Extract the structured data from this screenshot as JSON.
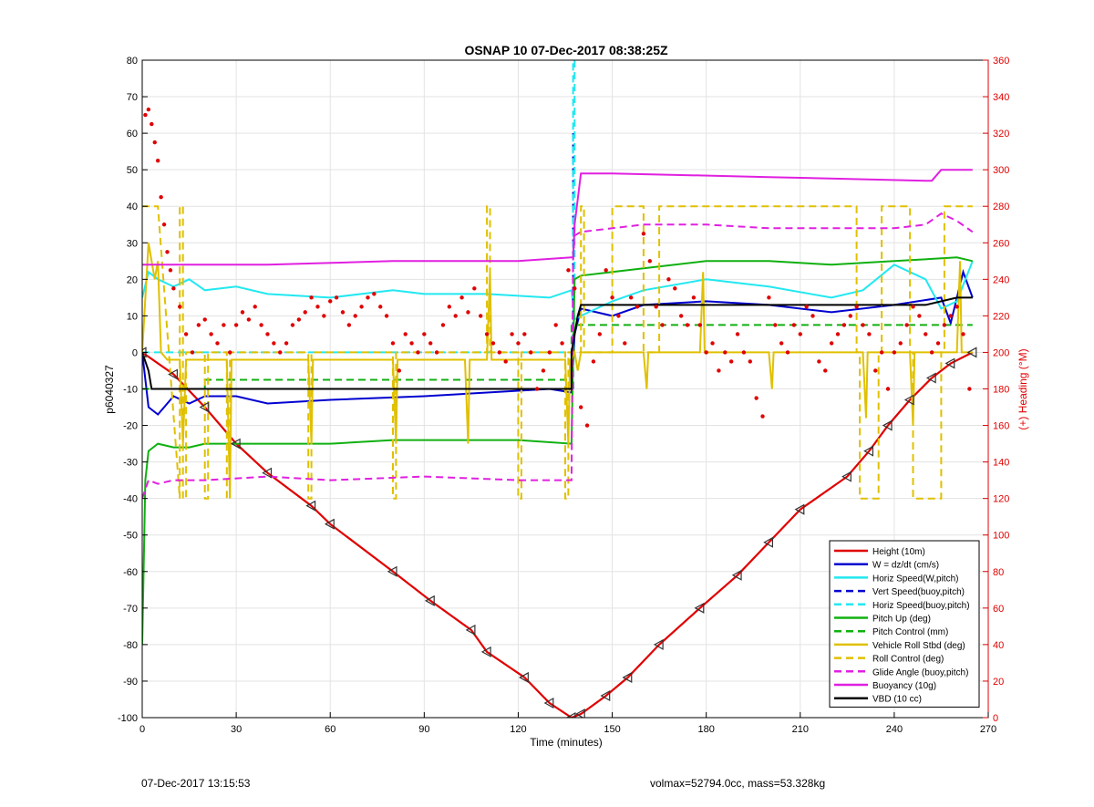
{
  "footer": {
    "left": "07-Dec-2017 13:15:53",
    "right": "volmax=52794.0cc, mass=53.328kg"
  },
  "colors": {
    "height": "#e00000",
    "w": "#0000d0",
    "horiz_w": "#22e8f0",
    "vert_buoy": "#0000d0",
    "horiz_buoy": "#22e8f0",
    "pitch_up": "#10b010",
    "pitch_control": "#10b010",
    "roll": "#e0c000",
    "roll_control": "#e0c000",
    "glide": "#e020e0",
    "buoyancy": "#e020e0",
    "vbd": "#000000",
    "heading": "#e00000",
    "right_axis": "#e00000"
  },
  "chart_data": {
    "type": "line",
    "title": "OSNAP 10 07-Dec-2017 08:38:25Z",
    "xlabel": "Time (minutes)",
    "ylabel": "p6040327",
    "y2label": "(+) Heading (°M)",
    "xlim": [
      0,
      270
    ],
    "ylim": [
      -100,
      80
    ],
    "y2lim": [
      0,
      360
    ],
    "xticks": [
      0,
      30,
      60,
      90,
      120,
      150,
      180,
      210,
      240,
      270
    ],
    "yticks": [
      -100,
      -90,
      -80,
      -70,
      -60,
      -50,
      -40,
      -30,
      -20,
      -10,
      0,
      10,
      20,
      30,
      40,
      50,
      60,
      70,
      80
    ],
    "y2ticks": [
      0,
      20,
      40,
      60,
      80,
      100,
      120,
      140,
      160,
      180,
      200,
      220,
      240,
      260,
      280,
      300,
      320,
      340,
      360
    ],
    "grid": true,
    "legend_position": "bottom-right",
    "series": [
      {
        "name": "Height (10m)",
        "style": "solid",
        "color_key": "height",
        "x": [
          0,
          10,
          20,
          30,
          40,
          54,
          60,
          80,
          92,
          105,
          110,
          122,
          130,
          137,
          140,
          148,
          155,
          165,
          178,
          190,
          200,
          210,
          225,
          232,
          238,
          245,
          252,
          258,
          265
        ],
        "y": [
          0,
          -6,
          -15,
          -25,
          -33,
          -42,
          -47,
          -60,
          -68,
          -76,
          -82,
          -89,
          -96,
          -100,
          -99,
          -94,
          -89,
          -80,
          -70,
          -61,
          -52,
          -43,
          -34,
          -27,
          -20,
          -13,
          -7,
          -3,
          0
        ]
      },
      {
        "name": "W = dz/dt (cm/s)",
        "style": "solid",
        "color_key": "w",
        "x": [
          0,
          2,
          5,
          10,
          15,
          20,
          30,
          40,
          60,
          90,
          110,
          130,
          137,
          138,
          140,
          150,
          160,
          180,
          200,
          220,
          240,
          255,
          258,
          262,
          265
        ],
        "y": [
          0,
          -15,
          -17,
          -12,
          -14,
          -12,
          -12,
          -14,
          -13,
          -12,
          -11,
          -10,
          -11,
          5,
          12,
          10,
          13,
          14,
          13,
          11,
          13,
          15,
          8,
          22,
          15
        ]
      },
      {
        "name": "Horiz Speed(W,pitch)",
        "style": "solid",
        "color_key": "horiz_w",
        "x": [
          0,
          2,
          5,
          10,
          15,
          20,
          30,
          40,
          60,
          80,
          90,
          110,
          130,
          137,
          138,
          140,
          150,
          160,
          180,
          200,
          220,
          230,
          240,
          250,
          255,
          260,
          265
        ],
        "y": [
          15,
          22,
          20,
          18,
          20,
          17,
          18,
          16,
          15,
          17,
          16,
          16,
          15,
          17,
          9,
          10,
          14,
          17,
          20,
          18,
          15,
          17,
          24,
          20,
          12,
          14,
          25
        ]
      },
      {
        "name": "Vert Speed(buoy,pitch)",
        "style": "dashed",
        "color_key": "vert_buoy",
        "x": [
          137.5,
          137.5
        ],
        "y": [
          -10,
          60
        ]
      },
      {
        "name": "Horiz Speed(buoy,pitch)",
        "style": "dashed",
        "color_key": "horiz_buoy",
        "x": [
          0,
          137,
          137.5,
          137.5,
          138,
          138
        ],
        "y": [
          0,
          0,
          15,
          80,
          80,
          15
        ]
      },
      {
        "name": "Pitch Up (deg)",
        "style": "solid",
        "color_key": "pitch_up",
        "x": [
          0,
          1,
          2,
          5,
          10,
          15,
          20,
          30,
          40,
          60,
          80,
          100,
          120,
          137,
          138,
          140,
          150,
          160,
          180,
          200,
          220,
          240,
          260,
          265
        ],
        "y": [
          -80,
          -35,
          -27,
          -25,
          -26,
          -26,
          -25,
          -25,
          -25,
          -25,
          -24,
          -24,
          -24,
          -25,
          20,
          21,
          22,
          23,
          25,
          25,
          24,
          25,
          26,
          25
        ]
      },
      {
        "name": "Pitch Control (mm)",
        "style": "dashed",
        "color_key": "pitch_control",
        "x": [
          0,
          20,
          20,
          110,
          110,
          137,
          137,
          265
        ],
        "y": [
          -10,
          -10,
          -7.5,
          -7.5,
          -7.5,
          -7.5,
          7.5,
          7.5
        ]
      },
      {
        "name": "Vehicle Roll Stbd (deg)",
        "style": "solid",
        "color_key": "roll",
        "x": [
          0,
          2,
          4,
          5,
          6,
          8,
          12,
          13,
          14,
          15,
          27,
          28,
          28.5,
          29,
          53,
          54,
          54.5,
          55,
          80,
          81,
          81.5,
          82,
          103,
          104,
          104.5,
          105,
          110,
          111,
          111.5,
          112,
          135,
          136,
          136.5,
          137,
          138,
          139,
          140,
          141,
          160,
          161,
          161.5,
          162,
          178,
          179,
          179.5,
          180,
          200,
          201,
          201.5,
          202,
          230,
          231,
          231.5,
          232,
          245,
          246,
          246.5,
          247,
          260,
          261,
          261.5,
          262,
          265
        ],
        "y": [
          0,
          30,
          20,
          25,
          0,
          -2,
          -2,
          -25,
          -2,
          -2,
          -2,
          -40,
          -2,
          -2,
          -2,
          -25,
          -2,
          -2,
          -2,
          -25,
          -2,
          -2,
          -2,
          -25,
          -2,
          -2,
          -2,
          22,
          -2,
          -2,
          -2,
          -25,
          -2,
          -2,
          0,
          -5,
          0,
          0,
          0,
          -10,
          0,
          0,
          0,
          22,
          0,
          0,
          0,
          -10,
          0,
          0,
          0,
          -18,
          0,
          0,
          0,
          -20,
          0,
          0,
          0,
          25,
          0,
          0,
          0
        ]
      },
      {
        "name": "Roll Control (deg)",
        "style": "dashed",
        "color_key": "roll_control",
        "x": [
          0,
          5,
          5,
          12,
          12,
          13,
          13,
          14,
          14,
          20,
          20,
          21,
          21,
          27,
          27,
          28,
          28,
          53,
          53,
          54,
          54,
          80,
          80,
          81,
          81,
          110,
          110,
          111,
          111,
          120,
          120,
          121,
          121,
          135,
          135,
          136,
          136,
          140,
          140,
          141,
          141,
          150,
          150,
          160,
          160,
          165,
          165,
          228,
          228,
          229,
          229,
          235,
          235,
          236,
          236,
          245,
          245,
          246,
          246,
          255,
          255,
          256,
          256,
          265
        ],
        "y": [
          40,
          40,
          40,
          -40,
          40,
          40,
          -40,
          -40,
          0,
          0,
          -40,
          -40,
          0,
          0,
          -40,
          -40,
          0,
          0,
          -40,
          -40,
          0,
          0,
          -40,
          -40,
          0,
          0,
          40,
          40,
          0,
          0,
          -40,
          -40,
          0,
          0,
          -40,
          -40,
          0,
          0,
          40,
          40,
          0,
          0,
          40,
          40,
          0,
          0,
          40,
          40,
          0,
          0,
          -40,
          -40,
          0,
          0,
          40,
          40,
          0,
          0,
          -40,
          -40,
          0,
          0,
          40,
          40
        ]
      },
      {
        "name": "Glide Angle (buoy,pitch)",
        "style": "dashed",
        "color_key": "glide",
        "x": [
          0,
          2,
          5,
          10,
          20,
          40,
          60,
          90,
          120,
          137,
          137.5,
          138,
          140,
          150,
          160,
          180,
          200,
          220,
          240,
          250,
          255,
          260,
          265
        ],
        "y": [
          -40,
          -35,
          -36,
          -35,
          -35,
          -34,
          -35,
          -34,
          -35,
          -35,
          25,
          32,
          33,
          34,
          35,
          35,
          34,
          34,
          34,
          35,
          38,
          36,
          33
        ]
      },
      {
        "name": "Buoyancy (10g)",
        "style": "solid",
        "color_key": "buoyancy",
        "x": [
          0,
          10,
          40,
          80,
          120,
          137,
          137.5,
          138,
          140,
          150,
          200,
          250,
          252,
          255,
          265
        ],
        "y": [
          24,
          24,
          24,
          25,
          25,
          26,
          26,
          35,
          49,
          49,
          48,
          47,
          47,
          50,
          50
        ]
      },
      {
        "name": "VBD (10 cc)",
        "style": "solid",
        "color_key": "vbd",
        "x": [
          0,
          2,
          3,
          137,
          137,
          139,
          140,
          150,
          250,
          260,
          265
        ],
        "y": [
          0,
          -5,
          -10,
          -10,
          0,
          10,
          13,
          13,
          13,
          15,
          15
        ]
      }
    ],
    "heading_points": {
      "color_key": "heading",
      "axis": "right",
      "x": [
        1,
        2,
        3,
        4,
        5,
        6,
        7,
        8,
        9,
        10,
        12,
        14,
        16,
        18,
        20,
        22,
        24,
        26,
        28,
        30,
        32,
        34,
        36,
        38,
        40,
        42,
        44,
        46,
        48,
        50,
        52,
        54,
        56,
        58,
        60,
        62,
        64,
        66,
        68,
        70,
        72,
        74,
        76,
        78,
        80,
        82,
        84,
        86,
        88,
        90,
        92,
        94,
        96,
        98,
        100,
        102,
        104,
        106,
        108,
        110,
        112,
        114,
        116,
        118,
        120,
        122,
        124,
        126,
        128,
        130,
        132,
        134,
        136,
        138,
        140,
        142,
        144,
        146,
        148,
        150,
        152,
        154,
        156,
        158,
        160,
        162,
        164,
        166,
        168,
        170,
        172,
        174,
        176,
        178,
        180,
        182,
        184,
        186,
        188,
        190,
        192,
        194,
        196,
        198,
        200,
        202,
        204,
        206,
        208,
        210,
        212,
        214,
        216,
        218,
        220,
        222,
        224,
        226,
        228,
        230,
        232,
        234,
        236,
        238,
        240,
        242,
        244,
        246,
        248,
        250,
        252,
        254,
        256,
        258,
        260,
        262,
        264
      ],
      "y": [
        330,
        333,
        325,
        315,
        305,
        285,
        270,
        255,
        245,
        235,
        225,
        210,
        200,
        215,
        218,
        210,
        205,
        215,
        200,
        215,
        222,
        218,
        225,
        215,
        210,
        205,
        200,
        205,
        215,
        218,
        222,
        230,
        225,
        220,
        228,
        230,
        222,
        215,
        220,
        225,
        230,
        232,
        225,
        220,
        205,
        190,
        210,
        205,
        200,
        210,
        205,
        200,
        215,
        225,
        220,
        230,
        222,
        235,
        220,
        210,
        205,
        200,
        195,
        210,
        205,
        210,
        200,
        180,
        190,
        200,
        215,
        205,
        245,
        235,
        170,
        160,
        195,
        210,
        245,
        230,
        220,
        205,
        230,
        225,
        265,
        250,
        225,
        215,
        240,
        235,
        220,
        215,
        230,
        215,
        200,
        205,
        190,
        200,
        195,
        210,
        200,
        195,
        175,
        165,
        230,
        215,
        205,
        200,
        215,
        210,
        225,
        220,
        195,
        190,
        205,
        210,
        215,
        220,
        225,
        215,
        210,
        190,
        200,
        180,
        200,
        205,
        215,
        225,
        220,
        210,
        200,
        205,
        215,
        220,
        225,
        210,
        180
      ]
    }
  }
}
